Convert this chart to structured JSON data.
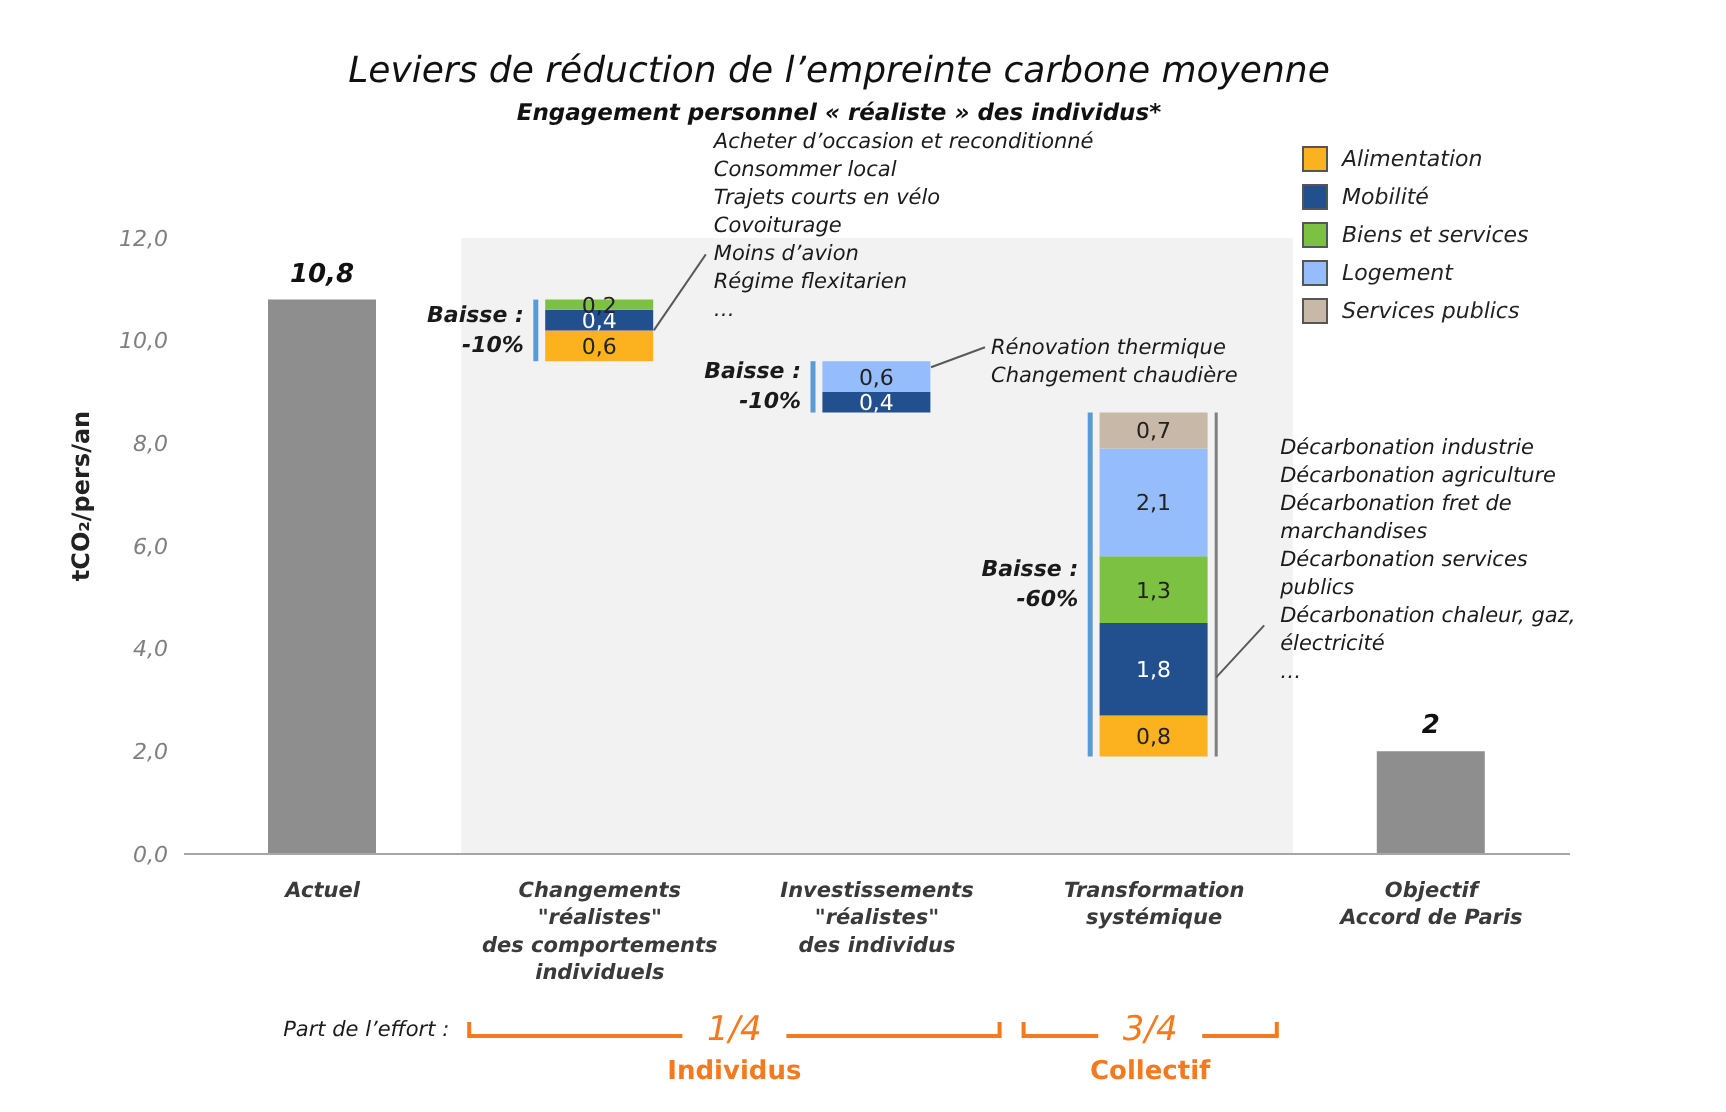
{
  "chart_data": {
    "type": "bar",
    "title": "Leviers de réduction de l’empreinte carbone moyenne",
    "subtitle": "Engagement personnel « réaliste » des individus*",
    "ylabel": "tCO₂/pers/an",
    "categories": [
      "Actuel",
      "Changements\n\"réalistes\"\ndes comportements\nindividuels",
      "Investissements\n\"réalistes\"\ndes individus",
      "Transformation\nsystémique",
      "Objectif\nAccord de Paris"
    ],
    "series": [
      {
        "color": "#8e8e8e",
        "values": [
          10.8,
          null,
          null,
          null,
          2
        ],
        "value_labels": [
          "10,8",
          null,
          null,
          null,
          "2"
        ]
      },
      {
        "name": "Alimentation",
        "color": "#fbb21e",
        "values": [
          null,
          0.6,
          null,
          0.8,
          null
        ],
        "base": [
          null,
          9.6,
          null,
          1.9,
          null
        ],
        "value_labels": [
          null,
          "0,6",
          null,
          "0,8",
          null
        ]
      },
      {
        "name": "Mobilité",
        "color": "#22508f",
        "values": [
          null,
          0.4,
          0.4,
          1.8,
          null
        ],
        "base": [
          null,
          10.2,
          8.6,
          2.7,
          null
        ],
        "value_labels": [
          null,
          "0,4",
          "0,4",
          "1,8",
          null
        ]
      },
      {
        "name": "Biens et services",
        "color": "#7dc142",
        "values": [
          null,
          0.2,
          null,
          1.3,
          null
        ],
        "base": [
          null,
          10.6,
          null,
          4.5,
          null
        ],
        "value_labels": [
          null,
          "0,2",
          null,
          "1,3",
          null
        ]
      },
      {
        "name": "Logement",
        "color": "#95bdfb",
        "values": [
          null,
          null,
          0.6,
          2.1,
          null
        ],
        "base": [
          null,
          null,
          9.0,
          5.8,
          null
        ],
        "value_labels": [
          null,
          null,
          "0,6",
          "2,1",
          null
        ]
      },
      {
        "name": "Services publics",
        "color": "#c8b8a8",
        "values": [
          null,
          null,
          null,
          0.7,
          null
        ],
        "base": [
          null,
          null,
          null,
          7.9,
          null
        ],
        "value_labels": [
          null,
          null,
          null,
          "0,7",
          null
        ]
      }
    ],
    "ylim": [
      0,
      12
    ],
    "yticks": [
      {
        "value": 0,
        "label": "0,0"
      },
      {
        "value": 2,
        "label": "2,0"
      },
      {
        "value": 4,
        "label": "4,0"
      },
      {
        "value": 6,
        "label": "6,0"
      },
      {
        "value": 8,
        "label": "8,0"
      },
      {
        "value": 10,
        "label": "10,0"
      },
      {
        "value": 12,
        "label": "12,0"
      }
    ],
    "legend": "top right",
    "bands": [
      {
        "axis": "x",
        "from": "Changements\n\"réalistes\"\ndes comportements\nindividuels",
        "to": "Transformation\nsystémique",
        "color": "#f2f2f2"
      }
    ],
    "annotations": [
      "Baisse :\n-10%",
      "Acheter d’occasion et reconditionné\nConsommer local\nTrajets courts en vélo\nCovoiturage\nMoins d’avion\nRégime flexitarien\n…",
      "Baisse :\n-10%",
      "Rénovation thermique\nChangement chaudière",
      "Baisse :\n-60%",
      "Décarbonation industrie\nDécarbonation agriculture\nDécarbonation fret de marchandises\nDécarbonation services publics\nDécarbonation chaleur, gaz, électricité\n…",
      "Part de l’effort :",
      "1/4",
      "Individus",
      "3/4",
      "Collectif"
    ]
  }
}
